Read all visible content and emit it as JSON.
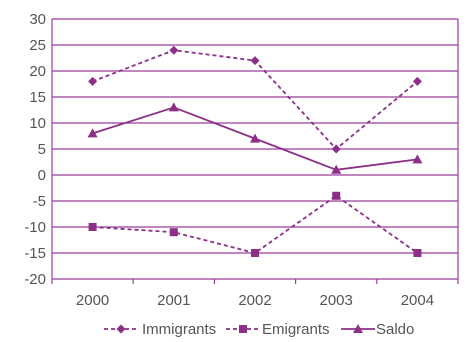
{
  "chart_data": {
    "type": "line",
    "categories": [
      "2000",
      "2001",
      "2002",
      "2003",
      "2004"
    ],
    "series": [
      {
        "name": "Immigrants",
        "values": [
          18,
          24,
          22,
          5,
          18
        ],
        "line_style": "dashed",
        "marker": "diamond"
      },
      {
        "name": "Emigrants",
        "values": [
          -10,
          -11,
          -15,
          -4,
          -15
        ],
        "line_style": "dashed",
        "marker": "square"
      },
      {
        "name": "Saldo",
        "values": [
          8,
          13,
          7,
          1,
          3
        ],
        "line_style": "solid",
        "marker": "triangle"
      }
    ],
    "ylim": [
      -20,
      30
    ],
    "yticks": [
      "30",
      "25",
      "20",
      "15",
      "10",
      "5",
      "0",
      "-5",
      "-10",
      "-15",
      "-20"
    ],
    "grid": true,
    "legend_position": "bottom",
    "title": "",
    "xlabel": "",
    "ylabel": "",
    "colors": {
      "series": "#8B2F87",
      "grid": "#9C3E9A",
      "axis_text": "#555555"
    }
  }
}
